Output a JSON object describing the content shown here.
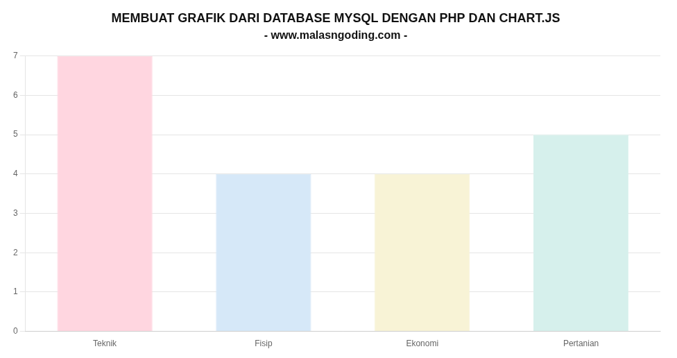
{
  "chart_data": {
    "type": "bar",
    "title": "MEMBUAT GRAFIK DARI DATABASE MYSQL DENGAN PHP DAN CHART.JS",
    "subtitle": "- www.malasngoding.com -",
    "categories": [
      "Teknik",
      "Fisip",
      "Ekonomi",
      "Pertanian"
    ],
    "values": [
      7,
      4,
      4,
      5
    ],
    "colors": [
      "#ffd6e0",
      "#d6e8f8",
      "#f8f3d6",
      "#d6f0ec"
    ],
    "ylim": [
      0,
      7
    ],
    "yticks": [
      0,
      1,
      2,
      3,
      4,
      5,
      6,
      7
    ],
    "grid": true
  }
}
